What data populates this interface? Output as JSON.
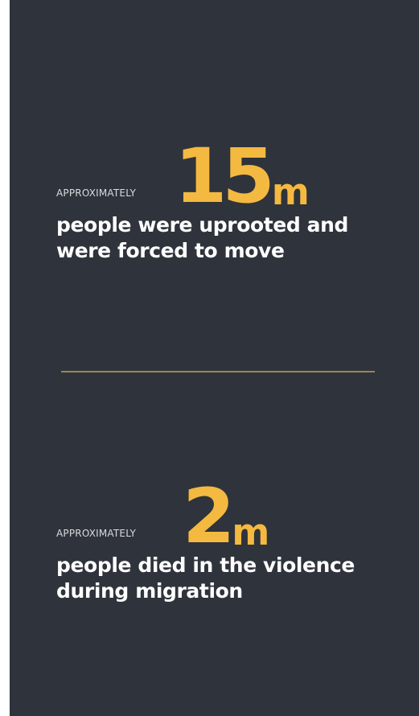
{
  "stats": [
    {
      "qualifier": "APPROXIMATELY",
      "number": "15",
      "unit": "m",
      "line1": "people were uprooted and",
      "line2": "were forced to move"
    },
    {
      "qualifier": "APPROXIMATELY",
      "number": "2",
      "unit": "m",
      "line1": "people died in the violence",
      "line2": "during migration"
    }
  ],
  "colors": {
    "background": "#2f333b",
    "accent": "#f4b940",
    "divider": "#9b8651",
    "text": "#ffffff",
    "qualifier_text": "#d9dbde"
  }
}
